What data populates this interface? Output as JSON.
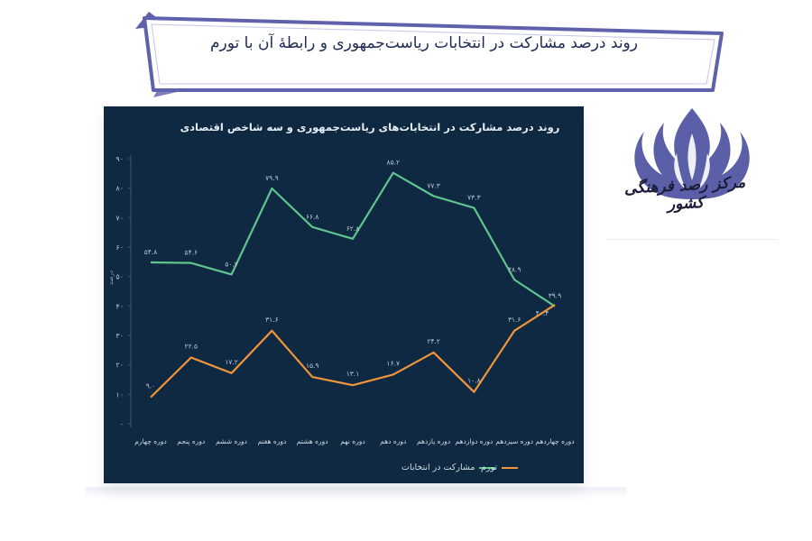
{
  "banner": {
    "title": "روند درصد مشارکت در انتخابات ریاست‌جمهوری و رابطهٔ آن با تورم"
  },
  "logo": {
    "caption": "مرکز رصد فرهنگی کشور",
    "color": "#5b5fa8"
  },
  "chart_data": {
    "type": "line",
    "title": "روند درصد مشارکت در انتخابات‌های ریاست‌جمهوری و سه شاخص اقتصادی",
    "ylabel": "درصد",
    "ylim": [
      0,
      90
    ],
    "yticks": [
      "۰",
      "۱۰",
      "۲۰",
      "۳۰",
      "۴۰",
      "۵۰",
      "۶۰",
      "۷۰",
      "۸۰",
      "۹۰"
    ],
    "categories": [
      "دوره چهارم",
      "دوره پنجم",
      "دوره ششم",
      "دوره هفتم",
      "دوره هشتم",
      "دوره نهم",
      "دوره دهم",
      "دوره یازدهم",
      "دوره دوازدهم",
      "دوره سیزدهم",
      "دوره چهاردهم"
    ],
    "series": [
      {
        "name": "مشارکت در انتخابات",
        "color": "#5fc48d",
        "values": [
          54.8,
          54.6,
          50.7,
          79.9,
          66.8,
          62.8,
          85.2,
          77.3,
          73.3,
          48.9,
          39.9
        ],
        "labels": [
          "۵۴.۸",
          "۵۴.۶",
          "۵۰.۷",
          "۷۹.۹",
          "۶۶.۸",
          "۶۲.۸",
          "۸۵.۲",
          "۷۷.۳",
          "۷۳.۳",
          "۴۸.۹",
          "۳۹.۹"
        ]
      },
      {
        "name": "تورم",
        "color": "#f0953a",
        "values": [
          9.0,
          22.5,
          17.2,
          31.6,
          15.9,
          13.1,
          16.7,
          24.2,
          10.8,
          31.6,
          40.4
        ],
        "labels": [
          "۹.۰",
          "۲۲.۵",
          "۱۷.۲",
          "۳۱.۶",
          "۱۵.۹",
          "۱۳.۱",
          "۱۶.۷",
          "۲۴.۲",
          "۱۰.۸",
          "۳۱.۶",
          "۴۰.۴"
        ]
      }
    ],
    "legend_position": "bottom",
    "grid": false,
    "background": "#0f2942"
  }
}
